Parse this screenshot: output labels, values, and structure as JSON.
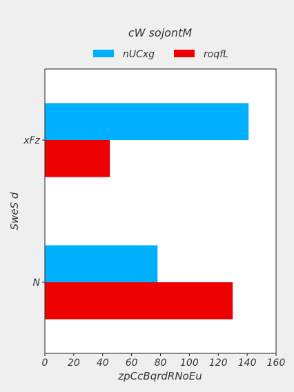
{
  "chart_data": {
    "type": "bar",
    "orientation": "horizontal",
    "title": "cW sojontM",
    "xlabel": "zpCcBqrdRNoEu",
    "ylabel": "SweS d",
    "categories": [
      "xFz",
      "N"
    ],
    "series": [
      {
        "name": "nUCxg",
        "color": "#00b0ff",
        "values": [
          141,
          78
        ]
      },
      {
        "name": "roqfL",
        "color": "#ee0000",
        "values": [
          45,
          130
        ]
      }
    ],
    "xlim": [
      0,
      160
    ],
    "xticks": [
      0,
      20,
      40,
      60,
      80,
      100,
      120,
      140,
      160
    ],
    "grid": false,
    "legend_position": "top-center"
  }
}
